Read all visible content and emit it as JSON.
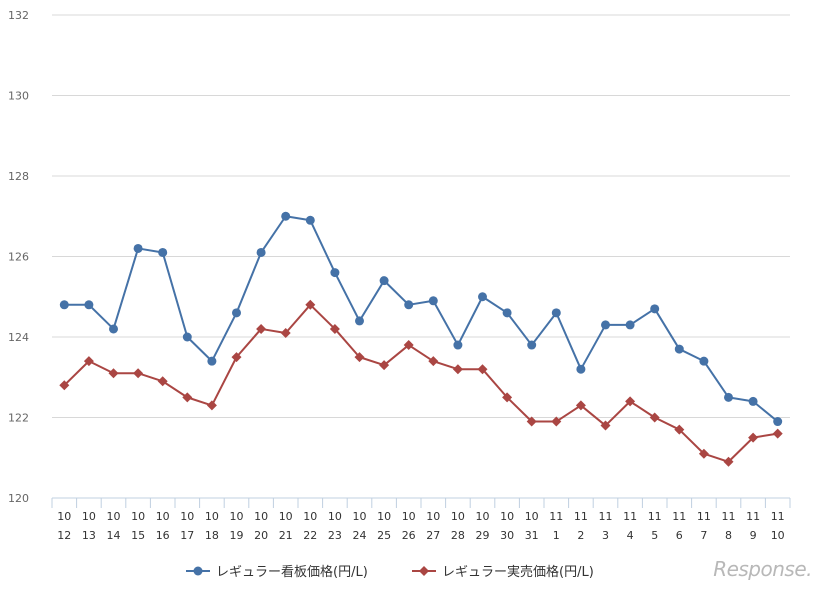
{
  "chart_data": {
    "type": "line",
    "categories": [
      [
        "10",
        "12"
      ],
      [
        "10",
        "13"
      ],
      [
        "10",
        "14"
      ],
      [
        "10",
        "15"
      ],
      [
        "10",
        "16"
      ],
      [
        "10",
        "17"
      ],
      [
        "10",
        "18"
      ],
      [
        "10",
        "19"
      ],
      [
        "10",
        "20"
      ],
      [
        "10",
        "21"
      ],
      [
        "10",
        "22"
      ],
      [
        "10",
        "23"
      ],
      [
        "10",
        "24"
      ],
      [
        "10",
        "25"
      ],
      [
        "10",
        "26"
      ],
      [
        "10",
        "27"
      ],
      [
        "10",
        "28"
      ],
      [
        "10",
        "29"
      ],
      [
        "10",
        "30"
      ],
      [
        "10",
        "31"
      ],
      [
        "11",
        "1"
      ],
      [
        "11",
        "2"
      ],
      [
        "11",
        "3"
      ],
      [
        "11",
        "4"
      ],
      [
        "11",
        "5"
      ],
      [
        "11",
        "6"
      ],
      [
        "11",
        "7"
      ],
      [
        "11",
        "8"
      ],
      [
        "11",
        "9"
      ],
      [
        "11",
        "10"
      ]
    ],
    "series": [
      {
        "name": "レギュラー看板価格(円/L)",
        "color": "#4572a7",
        "marker": "circle",
        "values": [
          124.8,
          124.8,
          124.2,
          126.2,
          126.1,
          124.0,
          123.4,
          124.6,
          126.1,
          127.0,
          126.9,
          125.6,
          124.4,
          125.4,
          124.8,
          124.9,
          123.8,
          125.0,
          124.6,
          123.8,
          124.6,
          123.2,
          124.3,
          124.3,
          124.7,
          123.7,
          123.4,
          122.5,
          122.4,
          121.9
        ]
      },
      {
        "name": "レギュラー実売価格(円/L)",
        "color": "#aa4643",
        "marker": "diamond",
        "values": [
          122.8,
          123.4,
          123.1,
          123.1,
          122.9,
          122.5,
          122.3,
          123.5,
          124.2,
          124.1,
          124.8,
          124.2,
          123.5,
          123.3,
          123.8,
          123.4,
          123.2,
          123.2,
          122.5,
          121.9,
          121.9,
          122.3,
          121.8,
          122.4,
          122.0,
          121.7,
          121.1,
          120.9,
          121.5,
          121.6
        ]
      }
    ],
    "ylim": [
      120,
      132
    ],
    "yticks": [
      120,
      122,
      124,
      126,
      128,
      130,
      132
    ],
    "grid": true,
    "legend_position": "bottom",
    "xlabel": "",
    "ylabel": "",
    "title": ""
  },
  "watermark": "Response."
}
